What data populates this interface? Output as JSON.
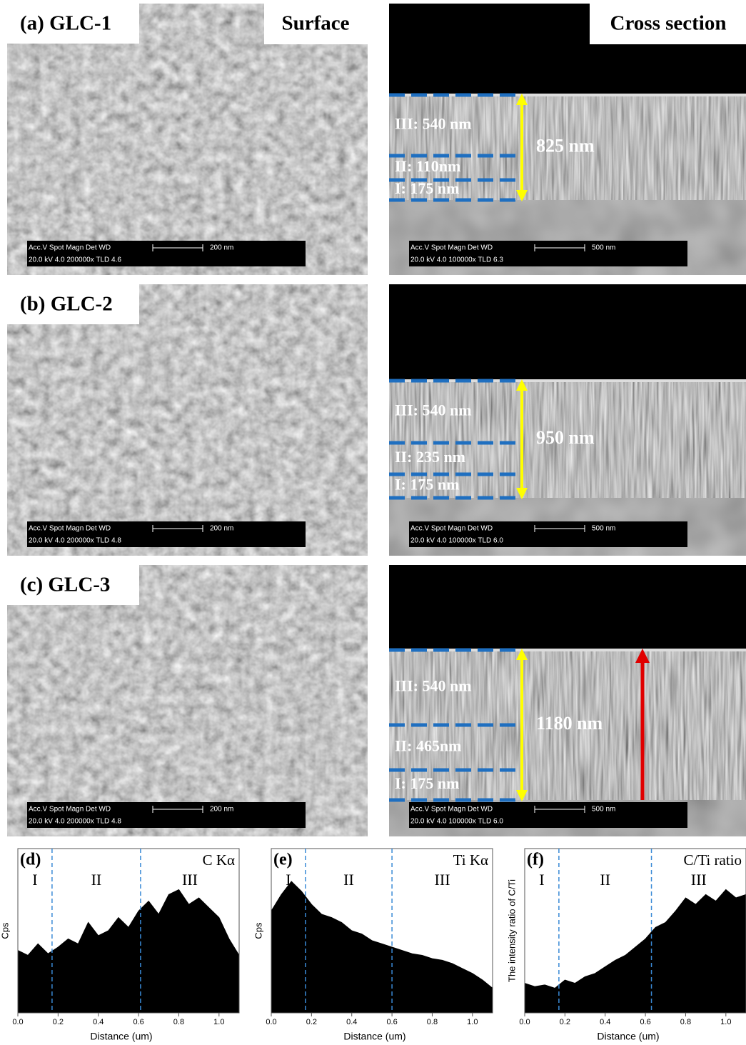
{
  "column_titles": {
    "surface": "Surface",
    "cross": "Cross section"
  },
  "panels": [
    {
      "label": "(a) GLC-1",
      "surface_bar": {
        "line1": "Acc.V   Spot Magn    Det  WD",
        "scale": "200 nm",
        "line2": "20.0 kV 4.0   200000x TLD 4.6"
      },
      "cross_bar": {
        "line1": "Acc.V   Spot Magn    Det  WD",
        "scale": "500 nm",
        "line2": "20.0 kV 4.0   100000x TLD 6.3"
      },
      "layers": [
        "III:  540 nm",
        "II: 110nm",
        "I: 175 nm"
      ],
      "total": "825 nm"
    },
    {
      "label": "(b) GLC-2",
      "surface_bar": {
        "line1": "Acc.V   Spot Magn    Det  WD",
        "scale": "200 nm",
        "line2": "20.0 kV 4.0   200000x TLD 4.8"
      },
      "cross_bar": {
        "line1": "Acc.V   Spot Magn    Det  WD",
        "scale": "500 nm",
        "line2": "20.0 kV 4.0   100000x TLD 6.0"
      },
      "layers": [
        "III:  540 nm",
        "II: 235 nm",
        "I: 175 nm"
      ],
      "total": "950 nm"
    },
    {
      "label": "(c) GLC-3",
      "surface_bar": {
        "line1": "Acc.V   Spot Magn    Det  WD",
        "scale": "200 nm",
        "line2": "20.0 kV 4.0   200000x TLD 4.8"
      },
      "cross_bar": {
        "line1": "Acc.V   Spot Magn    Det  WD",
        "scale": "500 nm",
        "line2": "20.0 kV 4.0   100000x TLD 6.0"
      },
      "layers": [
        "III: 540 nm",
        "II: 465nm",
        "I: 175 nm"
      ],
      "total": "1180 nm"
    }
  ],
  "chart_data": [
    {
      "type": "area",
      "panel": "(d)",
      "title": "C Kα",
      "y_label": "Cps",
      "x_label": "Distance (um)",
      "regions": [
        "I",
        "II",
        "III"
      ],
      "dividers": [
        0.17,
        0.61
      ],
      "color": "#000000",
      "x": [
        0,
        0.05,
        0.1,
        0.15,
        0.2,
        0.25,
        0.3,
        0.35,
        0.4,
        0.45,
        0.5,
        0.55,
        0.6,
        0.65,
        0.7,
        0.75,
        0.8,
        0.85,
        0.9,
        0.95,
        1.0,
        1.05,
        1.1
      ],
      "values": [
        0.38,
        0.35,
        0.42,
        0.36,
        0.4,
        0.45,
        0.42,
        0.55,
        0.47,
        0.5,
        0.58,
        0.52,
        0.62,
        0.68,
        0.6,
        0.72,
        0.75,
        0.66,
        0.7,
        0.64,
        0.58,
        0.45,
        0.35
      ],
      "xlim": [
        0,
        1.1
      ],
      "ylim": [
        0,
        1
      ],
      "xticks": [
        {
          "value": 0,
          "label": "0.0"
        },
        0.2,
        0.4,
        0.6,
        0.8,
        {
          "value": 1,
          "label": "1.0"
        }
      ]
    },
    {
      "type": "area",
      "panel": "(e)",
      "title": "Ti Kα",
      "y_label": "Cps",
      "x_label": "Distance (um)",
      "regions": [
        "I",
        "II",
        "III"
      ],
      "dividers": [
        0.17,
        0.6
      ],
      "color": "#000000",
      "x": [
        0,
        0.05,
        0.1,
        0.15,
        0.2,
        0.25,
        0.3,
        0.35,
        0.4,
        0.45,
        0.5,
        0.55,
        0.6,
        0.65,
        0.7,
        0.75,
        0.8,
        0.85,
        0.9,
        0.95,
        1.0,
        1.05,
        1.1
      ],
      "values": [
        0.62,
        0.72,
        0.8,
        0.74,
        0.66,
        0.6,
        0.58,
        0.55,
        0.5,
        0.48,
        0.44,
        0.42,
        0.4,
        0.38,
        0.36,
        0.35,
        0.33,
        0.32,
        0.3,
        0.27,
        0.24,
        0.2,
        0.15
      ],
      "xlim": [
        0,
        1.1
      ],
      "ylim": [
        0,
        1
      ],
      "xticks": [
        {
          "value": 0,
          "label": "0.0"
        },
        0.2,
        0.4,
        0.6,
        0.8,
        {
          "value": 1,
          "label": "1.0"
        }
      ]
    },
    {
      "type": "area",
      "panel": "(f)",
      "title": "C/Ti ratio",
      "y_label": "The intensity ratio of C/Ti",
      "x_label": "Distance (um)",
      "regions": [
        "I",
        "II",
        "III"
      ],
      "dividers": [
        0.17,
        0.63
      ],
      "color": "#000000",
      "x": [
        0,
        0.05,
        0.1,
        0.15,
        0.2,
        0.25,
        0.3,
        0.35,
        0.4,
        0.45,
        0.5,
        0.55,
        0.6,
        0.65,
        0.7,
        0.75,
        0.8,
        0.85,
        0.9,
        0.95,
        1.0,
        1.05,
        1.1
      ],
      "values": [
        0.18,
        0.16,
        0.17,
        0.15,
        0.2,
        0.18,
        0.22,
        0.24,
        0.28,
        0.32,
        0.35,
        0.4,
        0.45,
        0.52,
        0.55,
        0.62,
        0.7,
        0.66,
        0.72,
        0.68,
        0.75,
        0.7,
        0.72
      ],
      "xlim": [
        0,
        1.1
      ],
      "ylim": [
        0,
        1
      ],
      "xticks": [
        {
          "value": 0,
          "label": "0.0"
        },
        0.2,
        0.4,
        0.6,
        0.8,
        {
          "value": 1,
          "label": "1.0"
        }
      ]
    }
  ]
}
